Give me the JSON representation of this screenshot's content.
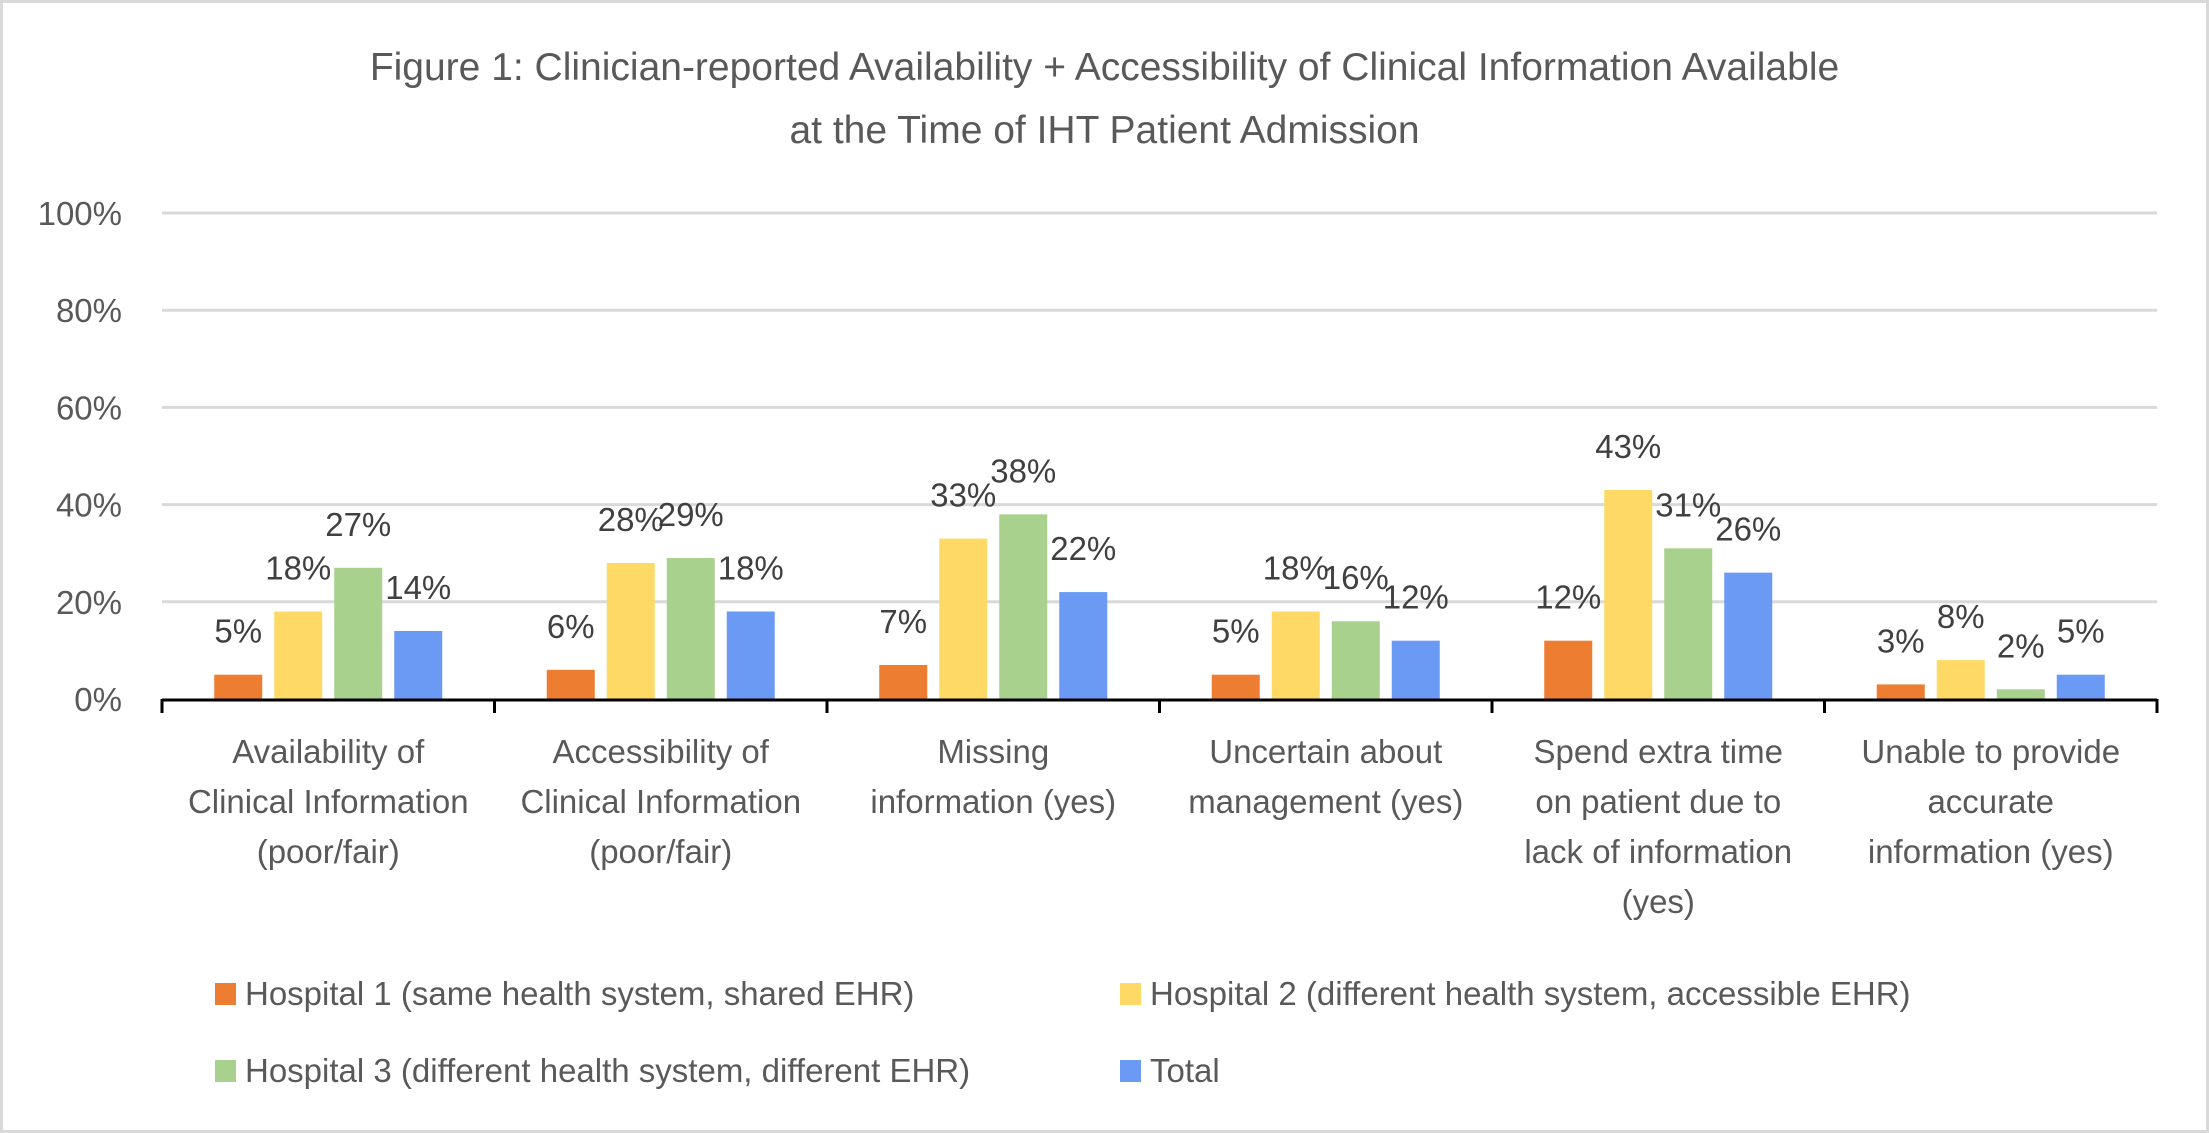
{
  "chart_data": {
    "type": "bar",
    "title": "Figure 1: Clinician-reported Availability + Accessibility of Clinical Information Available at the Time of IHT Patient Admission",
    "title_lines": [
      "Figure 1: Clinician-reported Availability + Accessibility of Clinical Information Available",
      "at the Time of IHT Patient Admission"
    ],
    "xlabel": "",
    "ylabel": "",
    "ylim": [
      0,
      100
    ],
    "yticks": [
      0,
      20,
      40,
      60,
      80,
      100
    ],
    "ytick_labels": [
      "0%",
      "20%",
      "40%",
      "60%",
      "80%",
      "100%"
    ],
    "grid": true,
    "legend_position": "bottom",
    "categories": [
      "Availability of Clinical Information (poor/fair)",
      "Accessibility of Clinical Information (poor/fair)",
      "Missing information (yes)",
      "Uncertain about management (yes)",
      "Spend extra time on patient due to lack of information (yes)",
      "Unable to provide accurate information (yes)"
    ],
    "category_label_lines": [
      [
        "Availability of",
        "Clinical Information",
        "(poor/fair)"
      ],
      [
        "Accessibility of",
        "Clinical Information",
        "(poor/fair)"
      ],
      [
        "Missing",
        "information (yes)"
      ],
      [
        "Uncertain about",
        "management (yes)"
      ],
      [
        "Spend extra time",
        "on patient due to",
        "lack of information",
        "(yes)"
      ],
      [
        "Unable to provide",
        "accurate",
        "information (yes)"
      ]
    ],
    "series": [
      {
        "name": "Hospital 1 (same health system, shared EHR)",
        "color": "#ED7D31",
        "values": [
          5,
          6,
          7,
          5,
          12,
          3
        ]
      },
      {
        "name": "Hospital 2 (different health system, accessible EHR)",
        "color": "#FFD966",
        "values": [
          18,
          28,
          33,
          18,
          43,
          8
        ]
      },
      {
        "name": "Hospital 3 (different health system, different EHR)",
        "color": "#A9D18E",
        "values": [
          27,
          29,
          38,
          16,
          31,
          2
        ]
      },
      {
        "name": "Total",
        "color": "#6A9AF4",
        "values": [
          14,
          18,
          22,
          12,
          26,
          5
        ]
      }
    ],
    "data_label_suffix": "%"
  }
}
